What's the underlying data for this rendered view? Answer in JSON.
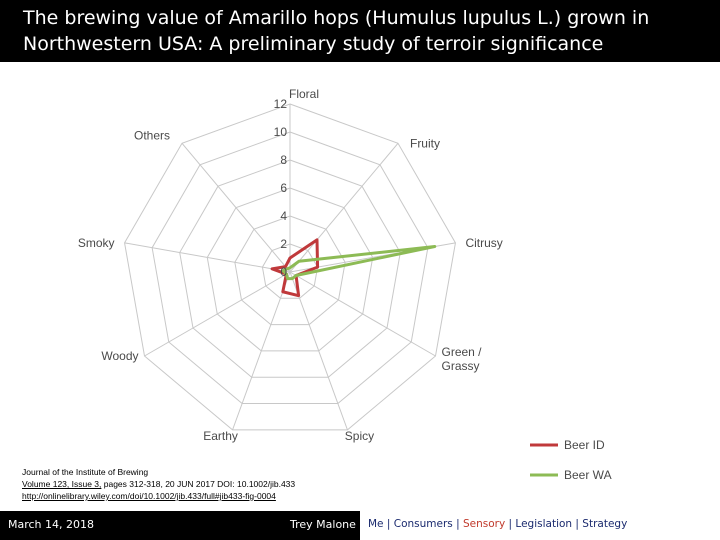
{
  "slide": {
    "title": "The brewing value of Amarillo hops (Humulus lupulus L.) grown in Northwestern USA: A preliminary study of terroir significance"
  },
  "citation": {
    "journal": "Journal of the Institute of Brewing",
    "volume_link": "Volume 123, Issue 3,",
    "details": " pages 312-318, 20 JUN 2017 DOI: 10.1002/jib.433",
    "url": "http://onlinelibrary.wiley.com/doi/10.1002/jib.433/full#jib433-fig-0004"
  },
  "footer": {
    "date": "March 14, 2018",
    "author": "Trey Malone",
    "nav": [
      {
        "label": "Me",
        "active": false
      },
      {
        "label": "Consumers",
        "active": false
      },
      {
        "label": "Sensory",
        "active": true
      },
      {
        "label": "Legislation",
        "active": false
      },
      {
        "label": "Strategy",
        "active": false
      }
    ],
    "active_color": "#c0392b",
    "nav_color": "#1a2a6e"
  },
  "chart_data": {
    "type": "radar",
    "axes": [
      "Floral",
      "Fruity",
      "Citrusy",
      "Green / Grassy",
      "Spicy",
      "Earthy",
      "Woody",
      "Smoky",
      "Others"
    ],
    "ticks": [
      0,
      2,
      4,
      6,
      8,
      10,
      12
    ],
    "range": [
      0,
      12
    ],
    "grid": true,
    "legend_position": "bottom-right",
    "series": [
      {
        "name": "Beer ID",
        "color": "#c0393b",
        "values": [
          1.0,
          3.0,
          2.0,
          0.5,
          1.8,
          1.5,
          0.3,
          1.3,
          0.5
        ]
      },
      {
        "name": "Beer WA",
        "color": "#8dbb55",
        "values": [
          0.3,
          1.0,
          10.5,
          0.5,
          0.5,
          0.5,
          0.3,
          0.5,
          0.3
        ]
      }
    ]
  }
}
